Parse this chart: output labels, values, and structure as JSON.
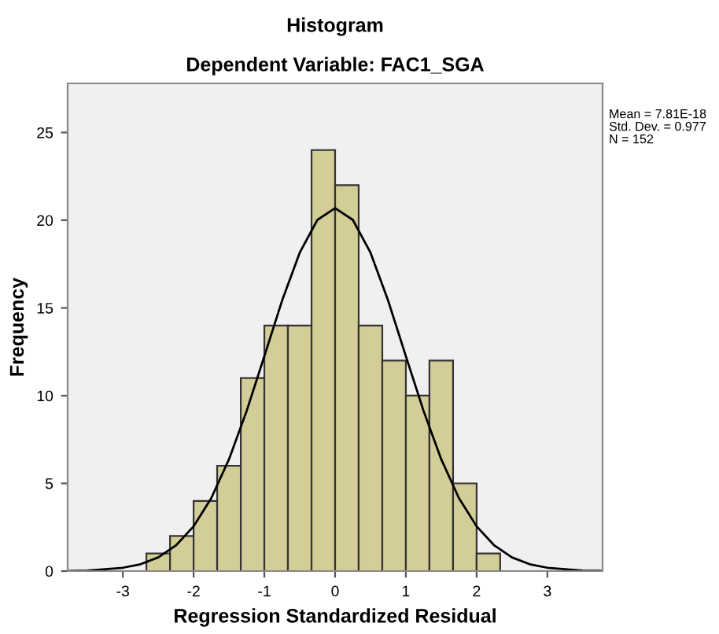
{
  "chart_data": {
    "type": "histogram",
    "title": "Histogram",
    "subtitle": "Dependent Variable: FAC1_SGA",
    "xlabel": "Regression Standardized Residual",
    "ylabel": "Frequency",
    "bins": [
      -2.667,
      -2.333,
      -2,
      -1.667,
      -1.333,
      -1,
      -0.667,
      -0.333,
      0,
      0.333,
      0.667,
      1,
      1.333,
      1.667,
      2,
      2.333
    ],
    "values": [
      1,
      2,
      4,
      6,
      11,
      14,
      14,
      24,
      22,
      14,
      12,
      10,
      12,
      5,
      1
    ],
    "color": "#d3ce97",
    "series": [
      {
        "type": "line",
        "color": "#000000",
        "x": [
          -3.78,
          -3.5,
          -3,
          -2.75,
          -2.5,
          -2.25,
          -2,
          -1.75,
          -1.5,
          -1.25,
          -1,
          -0.75,
          -0.5,
          -0.25,
          0,
          0.25,
          0.5,
          0.75,
          1,
          1.25,
          1.5,
          1.75,
          2,
          2.25,
          2.5,
          2.75,
          3,
          3.5,
          3.78
        ],
        "values": [
          0.01,
          0.03,
          0.19,
          0.39,
          0.78,
          1.46,
          2.55,
          4.16,
          6.37,
          9.13,
          12.25,
          15.41,
          18.15,
          20.02,
          20.69,
          20.02,
          18.15,
          15.41,
          12.25,
          9.13,
          6.37,
          4.16,
          2.55,
          1.46,
          0.78,
          0.39,
          0.19,
          0.03,
          0.01
        ]
      }
    ],
    "xlim": [
      -3.78,
      3.78
    ],
    "ylim": [
      0,
      27.8
    ],
    "xticks": [
      -3,
      -2,
      -1,
      0,
      1,
      2,
      3
    ],
    "yticks": [
      0,
      5,
      10,
      15,
      20,
      25
    ],
    "grid": false,
    "annotations": [
      "Mean = 7.81E-18",
      "Std. Dev. = 0.977",
      "N = 152"
    ]
  }
}
